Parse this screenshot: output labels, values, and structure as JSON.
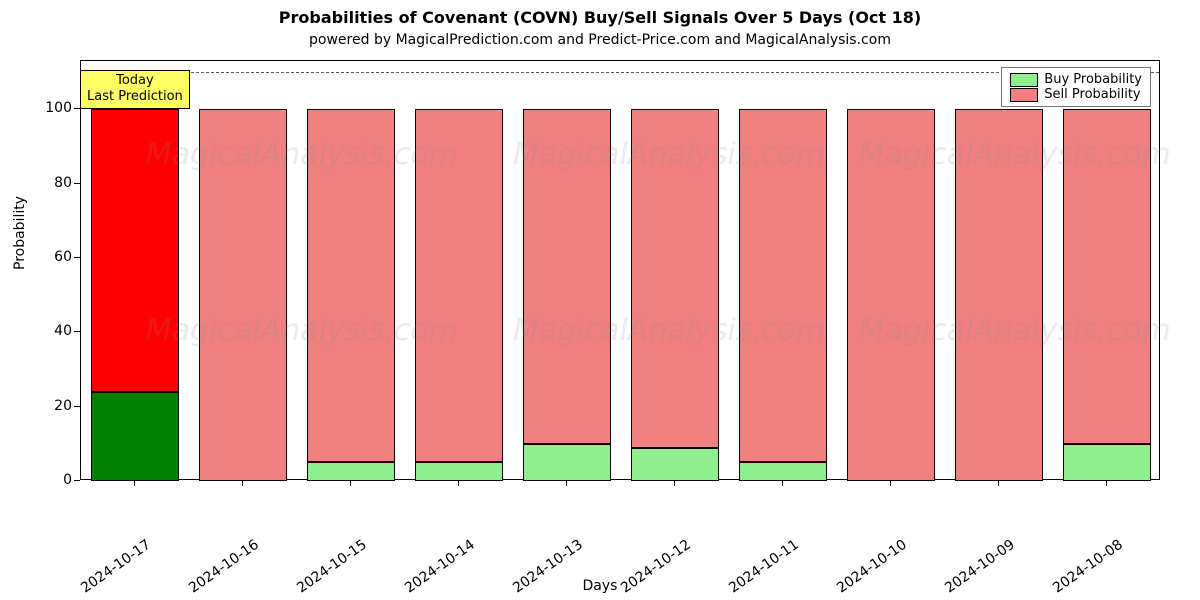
{
  "chart": {
    "type": "bar-stacked",
    "title": "Probabilities of Covenant (COVN) Buy/Sell Signals Over 5 Days (Oct 18)",
    "title_fontsize": 16,
    "subtitle": "powered by MagicalPrediction.com and Predict-Price.com and MagicalAnalysis.com",
    "subtitle_fontsize": 14,
    "xlabel": "Days",
    "ylabel": "Probability",
    "label_fontsize": 14,
    "tick_fontsize": 14,
    "background_color": "#ffffff",
    "axis_color": "#000000",
    "ylim": [
      0,
      113
    ],
    "yticks": [
      0,
      20,
      40,
      60,
      80,
      100
    ],
    "href_line": {
      "y": 110,
      "color": "#555555",
      "dash": true
    },
    "categories": [
      "2024-10-17",
      "2024-10-16",
      "2024-10-15",
      "2024-10-14",
      "2024-10-13",
      "2024-10-12",
      "2024-10-11",
      "2024-10-10",
      "2024-10-09",
      "2024-10-08"
    ],
    "buy_values": [
      24,
      0,
      5,
      5,
      10,
      9,
      5,
      0,
      0,
      10
    ],
    "sell_values": [
      100,
      100,
      100,
      100,
      100,
      100,
      100,
      100,
      100,
      100
    ],
    "highlight_index": 0,
    "bar_width": 0.82,
    "buy_color": "#90ee90",
    "buy_color_hi": "#008000",
    "sell_color": "#f08080",
    "sell_color_hi": "#ff0000",
    "legend": {
      "items": [
        {
          "label": "Buy Probability",
          "color": "#90ee90"
        },
        {
          "label": "Sell Probability",
          "color": "#f08080"
        }
      ],
      "position": "top-right"
    },
    "annotation": {
      "text": "Today\nLast Prediction",
      "bg": "#ffff66",
      "index": 0
    },
    "watermark": {
      "text": "MagicalAnalysis.com",
      "color": "rgba(140,140,140,0.18)",
      "fontsize": 30
    },
    "xtick_rotation_deg": 35
  }
}
